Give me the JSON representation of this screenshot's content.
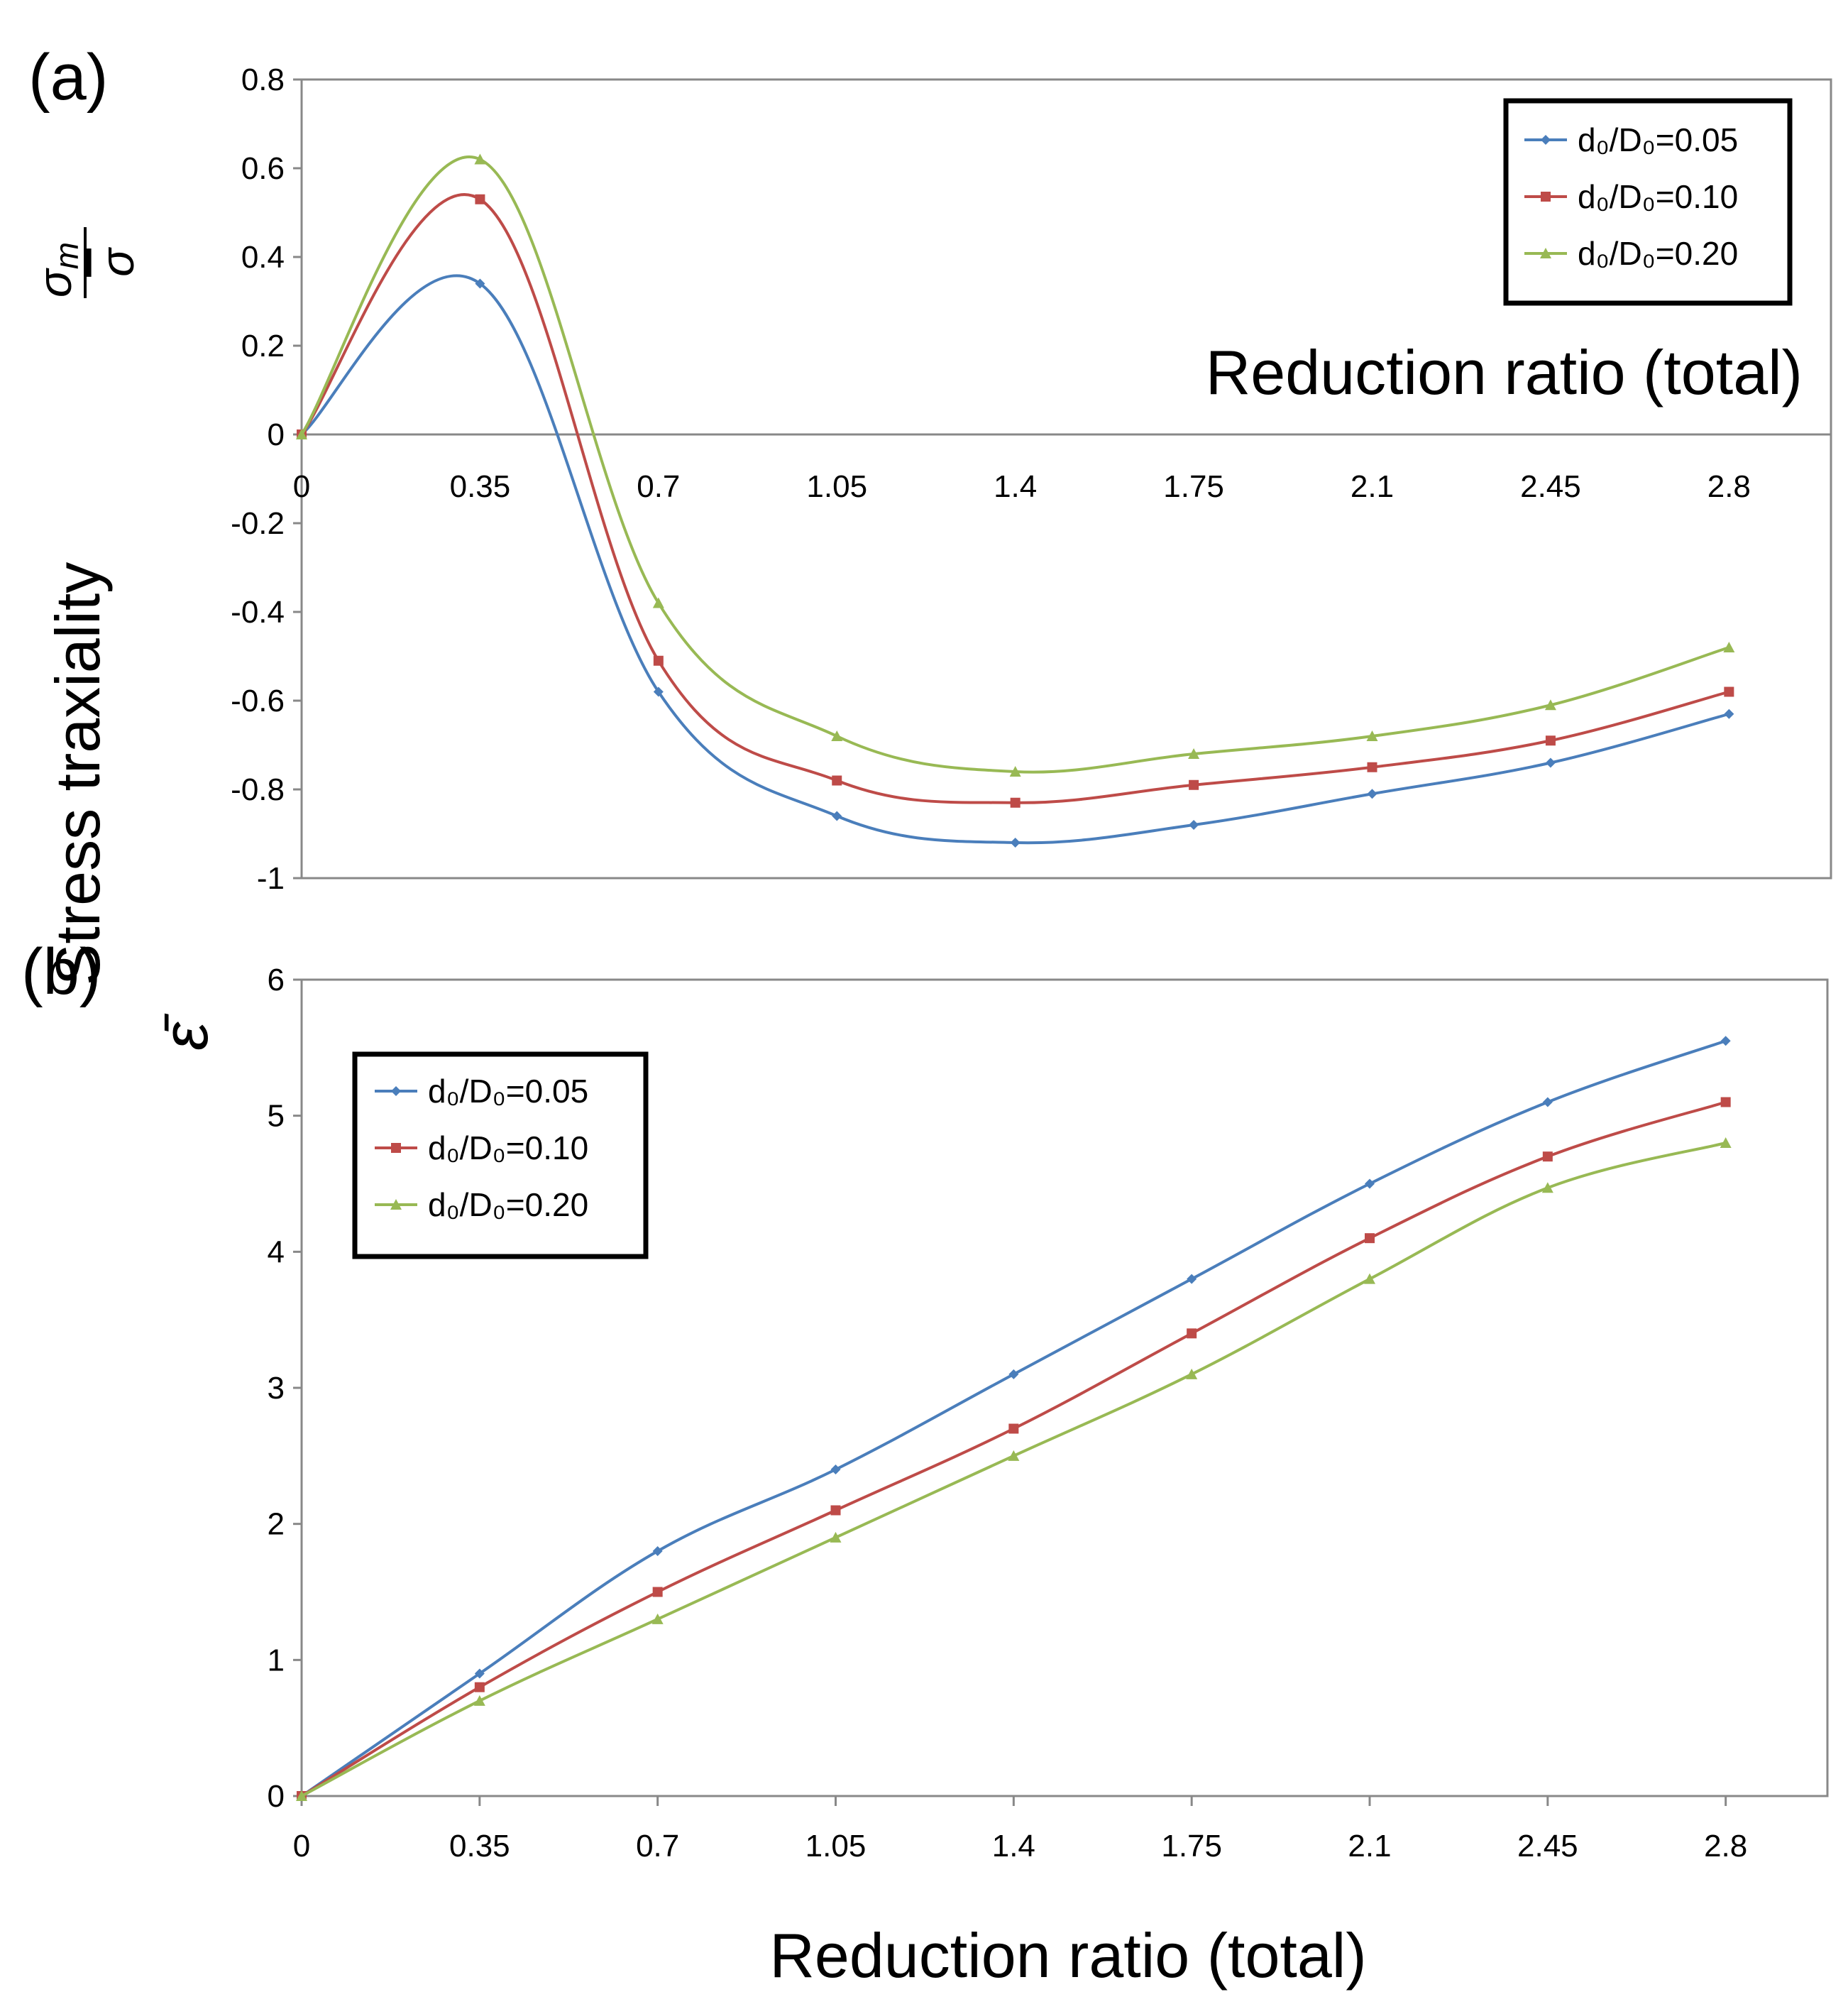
{
  "chart_data": [
    {
      "type": "line",
      "panel_label": "(a)",
      "ylabel": "Stress traxiality",
      "ylabel_symbol": {
        "numerator": "σ",
        "numerator_sub": "m",
        "denominator": "σ"
      },
      "xlabel": "Reduction ratio (total)",
      "categories": [
        "0",
        "0.35",
        "0.7",
        "1.05",
        "1.4",
        "1.75",
        "2.1",
        "2.45",
        "2.8"
      ],
      "yticks": [
        "0.8",
        "0.6",
        "0.4",
        "0.2",
        "0",
        "-0.2",
        "-0.4",
        "-0.6",
        "-0.8",
        "-1"
      ],
      "ylim": [
        -1,
        0.8
      ],
      "xlim": [
        0,
        3.0
      ],
      "grid": false,
      "legend_position": "top-right",
      "series": [
        {
          "name": "d₀/D₀=0.05",
          "color": "#4a7ebb",
          "marker": "diamond",
          "x": [
            0,
            0.35,
            0.7,
            1.05,
            1.4,
            1.75,
            2.1,
            2.45,
            2.8
          ],
          "values": [
            0,
            0.34,
            -0.58,
            -0.86,
            -0.92,
            -0.88,
            -0.81,
            -0.74,
            -0.63
          ]
        },
        {
          "name": "d₀/D₀=0.10",
          "color": "#be4b48",
          "marker": "square",
          "x": [
            0,
            0.35,
            0.7,
            1.05,
            1.4,
            1.75,
            2.1,
            2.45,
            2.8
          ],
          "values": [
            0,
            0.53,
            -0.51,
            -0.78,
            -0.83,
            -0.79,
            -0.75,
            -0.69,
            -0.58
          ]
        },
        {
          "name": "d₀/D₀=0.20",
          "color": "#98b954",
          "marker": "triangle",
          "x": [
            0,
            0.35,
            0.7,
            1.05,
            1.4,
            1.75,
            2.1,
            2.45,
            2.8
          ],
          "values": [
            0,
            0.62,
            -0.38,
            -0.68,
            -0.76,
            -0.72,
            -0.68,
            -0.61,
            -0.48
          ]
        }
      ]
    },
    {
      "type": "line",
      "panel_label": "(b)",
      "ylabel": "ε̄",
      "xlabel": "Reduction ratio (total)",
      "categories": [
        "0",
        "0.35",
        "0.7",
        "1.05",
        "1.4",
        "1.75",
        "2.1",
        "2.45",
        "2.8"
      ],
      "yticks": [
        "6",
        "5",
        "4",
        "3",
        "2",
        "1",
        "0"
      ],
      "ylim": [
        0,
        6
      ],
      "xlim": [
        0,
        3.0
      ],
      "grid": false,
      "legend_position": "top-left",
      "series": [
        {
          "name": "d₀/D₀=0.05",
          "color": "#4a7ebb",
          "marker": "diamond",
          "x": [
            0,
            0.35,
            0.7,
            1.05,
            1.4,
            1.75,
            2.1,
            2.45,
            2.8
          ],
          "values": [
            0,
            0.9,
            1.8,
            2.4,
            3.1,
            3.8,
            4.5,
            5.1,
            5.55
          ]
        },
        {
          "name": "d₀/D₀=0.10",
          "color": "#be4b48",
          "marker": "square",
          "x": [
            0,
            0.35,
            0.7,
            1.05,
            1.4,
            1.75,
            2.1,
            2.45,
            2.8
          ],
          "values": [
            0,
            0.8,
            1.5,
            2.1,
            2.7,
            3.4,
            4.1,
            4.7,
            5.1
          ]
        },
        {
          "name": "d₀/D₀=0.20",
          "color": "#98b954",
          "marker": "triangle",
          "x": [
            0,
            0.35,
            0.7,
            1.05,
            1.4,
            1.75,
            2.1,
            2.45,
            2.8
          ],
          "values": [
            0,
            0.7,
            1.3,
            1.9,
            2.5,
            3.1,
            3.8,
            4.47,
            4.8
          ]
        }
      ]
    }
  ]
}
